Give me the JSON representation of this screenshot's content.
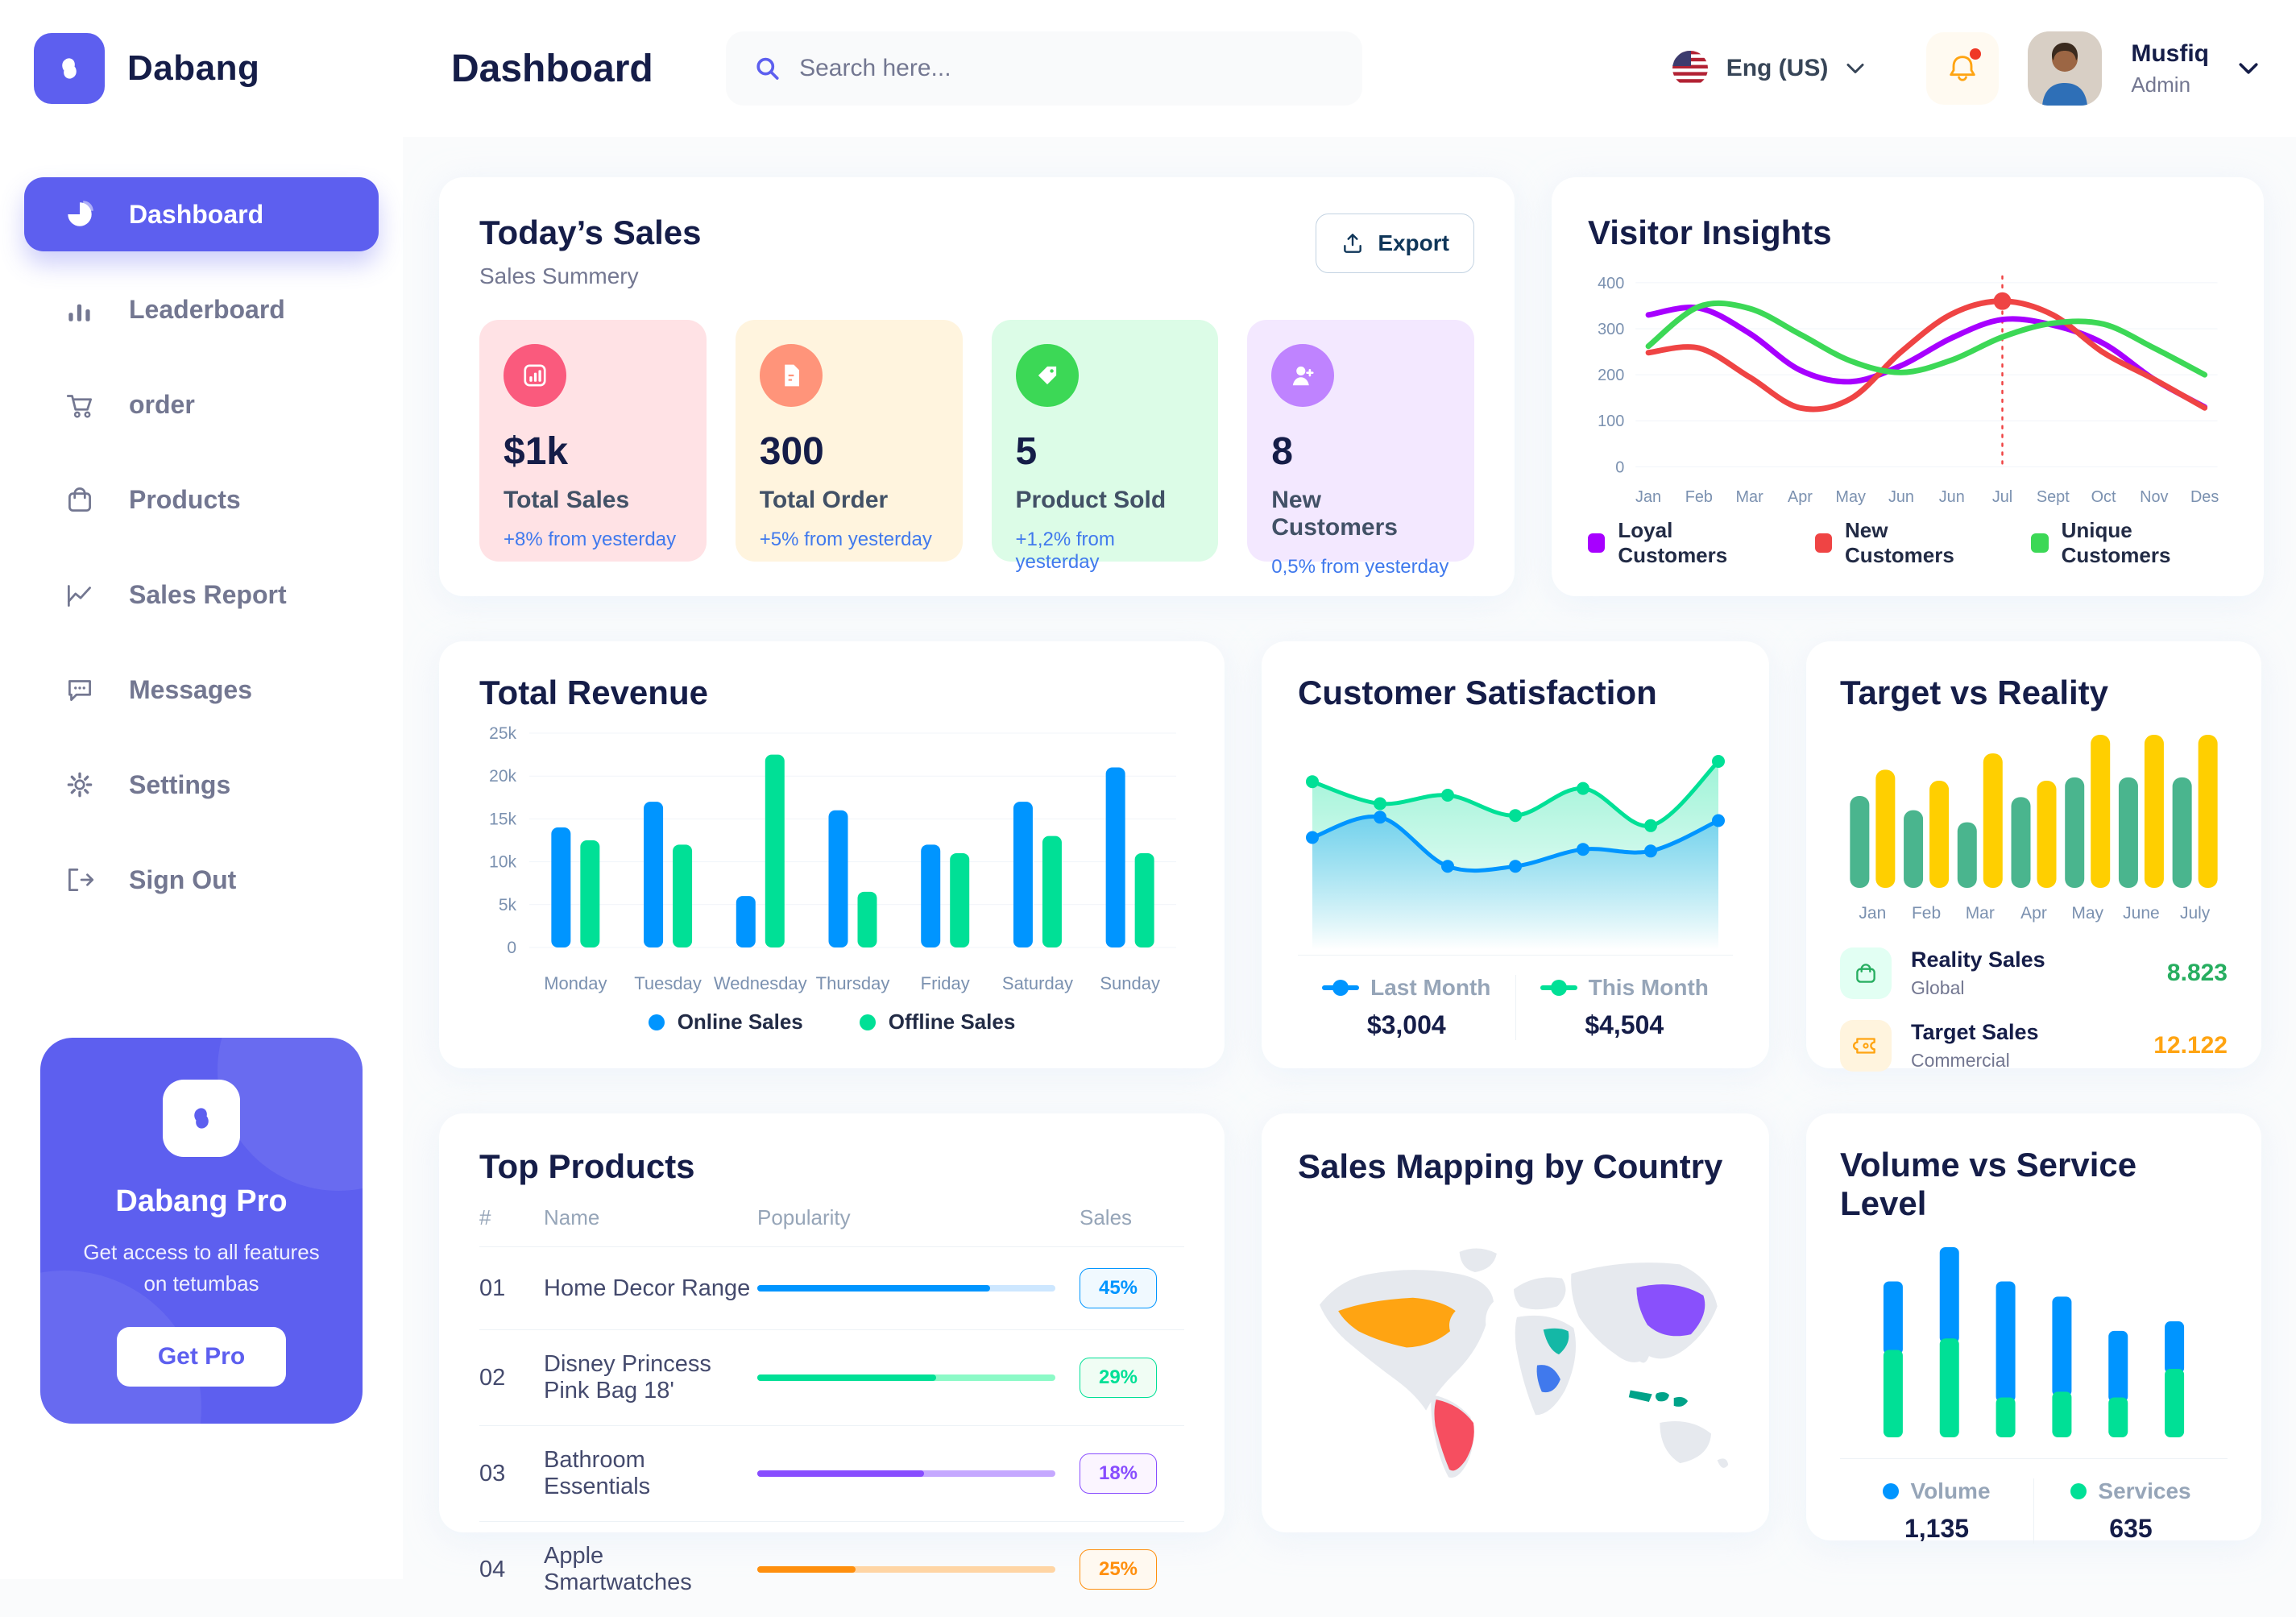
{
  "brand": {
    "name": "Dabang"
  },
  "header": {
    "page_title": "Dashboard",
    "search_placeholder": "Search here...",
    "language": "Eng (US)",
    "user": {
      "name": "Musfiq",
      "role": "Admin"
    }
  },
  "sidebar": {
    "items": [
      {
        "label": "Dashboard",
        "active": true
      },
      {
        "label": "Leaderboard"
      },
      {
        "label": "order"
      },
      {
        "label": "Products"
      },
      {
        "label": "Sales Report"
      },
      {
        "label": "Messages"
      },
      {
        "label": "Settings"
      },
      {
        "label": "Sign Out"
      }
    ],
    "pro": {
      "title": "Dabang Pro",
      "description": "Get access to all features on tetumbas",
      "button": "Get Pro"
    }
  },
  "today_sales": {
    "title": "Today’s Sales",
    "subtitle": "Sales Summery",
    "export_label": "Export",
    "cards": [
      {
        "value": "$1k",
        "label": "Total Sales",
        "delta": "+8% from yesterday",
        "bg": "#FFE2E5",
        "icon_bg": "#FA5A7D",
        "icon": "bar-chart"
      },
      {
        "value": "300",
        "label": "Total Order",
        "delta": "+5% from yesterday",
        "bg": "#FFF4DE",
        "icon_bg": "#FF947A",
        "icon": "document"
      },
      {
        "value": "5",
        "label": "Product Sold",
        "delta": "+1,2% from yesterday",
        "bg": "#DCFCE7",
        "icon_bg": "#3CD856",
        "icon": "tag"
      },
      {
        "value": "8",
        "label": "New Customers",
        "delta": "0,5% from yesterday",
        "bg": "#F3E8FF",
        "icon_bg": "#BF83FF",
        "icon": "user-plus"
      }
    ]
  },
  "chart_data": [
    {
      "id": "visitor_insights",
      "type": "line",
      "title": "Visitor Insights",
      "x": [
        "Jan",
        "Feb",
        "Mar",
        "Apr",
        "May",
        "Jun",
        "Jun",
        "Jul",
        "Sept",
        "Oct",
        "Nov",
        "Des"
      ],
      "ylim": [
        0,
        400
      ],
      "yticks": [
        0,
        100,
        200,
        300,
        400
      ],
      "grid": true,
      "legend_position": "bottom",
      "series": [
        {
          "name": "Loyal Customers",
          "color": "#A700FF",
          "values": [
            330,
            345,
            290,
            210,
            185,
            220,
            280,
            320,
            308,
            268,
            190,
            130
          ]
        },
        {
          "name": "New Customers",
          "color": "#EF4444",
          "values": [
            248,
            258,
            195,
            128,
            148,
            250,
            332,
            360,
            330,
            248,
            190,
            128
          ]
        },
        {
          "name": "Unique Customers",
          "color": "#3CD856",
          "values": [
            262,
            348,
            344,
            288,
            230,
            205,
            232,
            282,
            312,
            310,
            258,
            200
          ]
        }
      ],
      "marker": {
        "series_index": 1,
        "x_index": 7
      }
    },
    {
      "id": "total_revenue",
      "type": "bar",
      "title": "Total Revenue",
      "categories": [
        "Monday",
        "Tuesday",
        "Wednesday",
        "Thursday",
        "Friday",
        "Saturday",
        "Sunday"
      ],
      "ylim": [
        0,
        25000
      ],
      "yticks_labels": [
        "0",
        "5k",
        "10k",
        "15k",
        "20k",
        "25k"
      ],
      "grid": true,
      "legend_position": "bottom",
      "series": [
        {
          "name": "Online Sales",
          "color": "#0095FF",
          "values": [
            14000,
            17000,
            6000,
            16000,
            12000,
            17000,
            21000
          ]
        },
        {
          "name": "Offline Sales",
          "color": "#00E096",
          "values": [
            12500,
            12000,
            22500,
            6500,
            11000,
            13000,
            11000
          ]
        }
      ]
    },
    {
      "id": "customer_satisfaction",
      "type": "area",
      "title": "Customer Satisfaction",
      "ylim": [
        0,
        100
      ],
      "grid": false,
      "legend_position": "bottom",
      "series": [
        {
          "name": "Last Month",
          "color": "#0095FF",
          "total": "$3,004",
          "values": [
            45,
            57,
            28,
            28,
            38,
            37,
            55
          ]
        },
        {
          "name": "This Month",
          "color": "#00E096",
          "total": "$4,504",
          "values": [
            78,
            65,
            70,
            58,
            74,
            52,
            90
          ]
        }
      ]
    },
    {
      "id": "target_vs_reality",
      "type": "bar",
      "title": "Target vs Reality",
      "categories": [
        "Jan",
        "Feb",
        "Mar",
        "Apr",
        "May",
        "June",
        "July"
      ],
      "ylim": [
        0,
        14
      ],
      "grid": false,
      "legend_position": "bottom",
      "series": [
        {
          "name": "Reality Sales",
          "color": "#4AB58E",
          "values": [
            8.4,
            7.1,
            6.0,
            8.3,
            10.1,
            10.1,
            10.1
          ]
        },
        {
          "name": "Target Sales",
          "color": "#FFCF00",
          "values": [
            10.8,
            9.8,
            12.3,
            9.8,
            14,
            14,
            14
          ]
        }
      ],
      "legend": [
        {
          "label": "Reality Sales",
          "sublabel": "Global",
          "value": "8.823",
          "value_color": "#27AE60",
          "tile_bg": "#E2FFF3",
          "icon": "bag"
        },
        {
          "label": "Target Sales",
          "sublabel": "Commercial",
          "value": "12.122",
          "value_color": "#FFA412",
          "tile_bg": "#FFF4DE",
          "icon": "ticket"
        }
      ]
    },
    {
      "id": "volume_service",
      "type": "stacked-bar",
      "title": "Volume vs Service Level",
      "ylim": [
        0,
        1000
      ],
      "grid": false,
      "legend_position": "bottom",
      "series": [
        {
          "name": "Volume",
          "color": "#0095FF",
          "total": "1,135",
          "values": [
            360,
            480,
            610,
            500,
            350,
            250
          ]
        },
        {
          "name": "Services",
          "color": "#00E096",
          "total": "635",
          "values": [
            460,
            520,
            210,
            240,
            210,
            360
          ]
        }
      ]
    },
    {
      "id": "sales_map",
      "type": "map",
      "title": "Sales Mapping by Country",
      "regions": [
        {
          "name": "United States",
          "color": "#FFA412"
        },
        {
          "name": "Brazil",
          "color": "#F64E60"
        },
        {
          "name": "Saudi Arabia",
          "color": "#14B8A6"
        },
        {
          "name": "DR Congo",
          "color": "#4079ED"
        },
        {
          "name": "China",
          "color": "#8950FC"
        },
        {
          "name": "Indonesia",
          "color": "#00A389"
        }
      ]
    }
  ],
  "top_products": {
    "title": "Top Products",
    "headers": [
      "#",
      "Name",
      "Popularity",
      "Sales"
    ],
    "rows": [
      {
        "index": "01",
        "name": "Home Decor Range",
        "popularity": 78,
        "sales": "45%",
        "color": "#0095FF",
        "track": "#CDE7FF",
        "badge_bg": "#F0F9FF"
      },
      {
        "index": "02",
        "name": "Disney Princess Pink Bag 18'",
        "popularity": 60,
        "sales": "29%",
        "color": "#00E096",
        "track": "#8CFAC7",
        "badge_bg": "#F0FDF4"
      },
      {
        "index": "03",
        "name": "Bathroom Essentials",
        "popularity": 56,
        "sales": "18%",
        "color": "#884DFF",
        "track": "#C5A8FF",
        "badge_bg": "#FBF5FF"
      },
      {
        "index": "04",
        "name": "Apple Smartwatches",
        "popularity": 33,
        "sales": "25%",
        "color": "#FF8F0D",
        "track": "#FFD5A4",
        "badge_bg": "#FFF9F0"
      }
    ]
  }
}
